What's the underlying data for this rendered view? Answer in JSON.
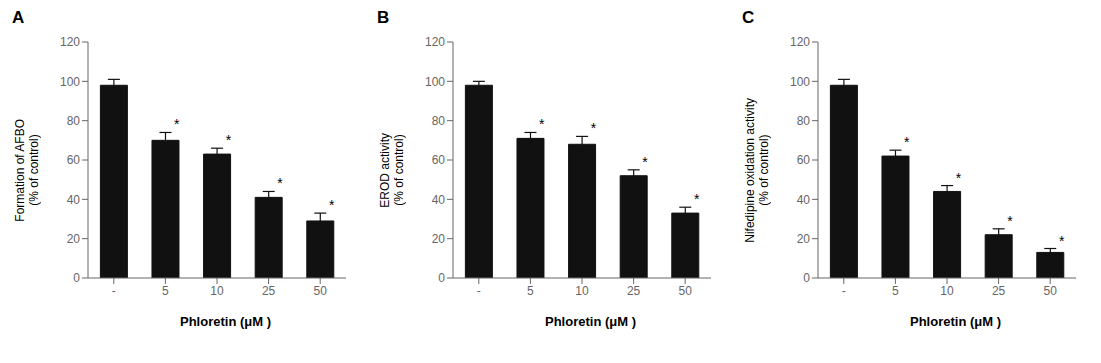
{
  "chart_data": [
    {
      "type": "bar",
      "title": "A",
      "ylabel": "Formation of AFBO\n(% of control)",
      "xlabel": "Phloretin (μM )",
      "categories": [
        "-",
        "5",
        "10",
        "25",
        "50"
      ],
      "values": [
        98,
        70,
        63,
        41,
        29
      ],
      "errors": [
        3,
        4,
        3,
        3,
        4
      ],
      "color": "#111111",
      "ylim": [
        0,
        120
      ],
      "yticks": [
        0,
        20,
        40,
        60,
        80,
        100,
        120
      ],
      "grid": false,
      "annotations": [
        {
          "category": "5",
          "text": "*"
        },
        {
          "category": "10",
          "text": "*"
        },
        {
          "category": "25",
          "text": "*"
        },
        {
          "category": "50",
          "text": "*"
        }
      ]
    },
    {
      "type": "bar",
      "title": "B",
      "ylabel": "EROD activity\n(% of control)",
      "xlabel": "Phloretin (μM )",
      "categories": [
        "-",
        "5",
        "10",
        "25",
        "50"
      ],
      "values": [
        98,
        71,
        68,
        52,
        33
      ],
      "errors": [
        2,
        3,
        4,
        3,
        3
      ],
      "color": "#111111",
      "ylim": [
        0,
        120
      ],
      "yticks": [
        0,
        20,
        40,
        60,
        80,
        100,
        120
      ],
      "grid": false,
      "annotations": [
        {
          "category": "5",
          "text": "*"
        },
        {
          "category": "10",
          "text": "*"
        },
        {
          "category": "25",
          "text": "*"
        },
        {
          "category": "50",
          "text": "*"
        }
      ]
    },
    {
      "type": "bar",
      "title": "C",
      "ylabel": "Nifedipine oxidation activity\n(% of control)",
      "xlabel": "Phloretin (μM )",
      "categories": [
        "-",
        "5",
        "10",
        "25",
        "50"
      ],
      "values": [
        98,
        62,
        44,
        22,
        13
      ],
      "errors": [
        3,
        3,
        3,
        3,
        2
      ],
      "color": "#111111",
      "ylim": [
        0,
        120
      ],
      "yticks": [
        0,
        20,
        40,
        60,
        80,
        100,
        120
      ],
      "grid": false,
      "annotations": [
        {
          "category": "5",
          "text": "*"
        },
        {
          "category": "10",
          "text": "*"
        },
        {
          "category": "25",
          "text": "*"
        },
        {
          "category": "50",
          "text": "*"
        }
      ]
    }
  ]
}
